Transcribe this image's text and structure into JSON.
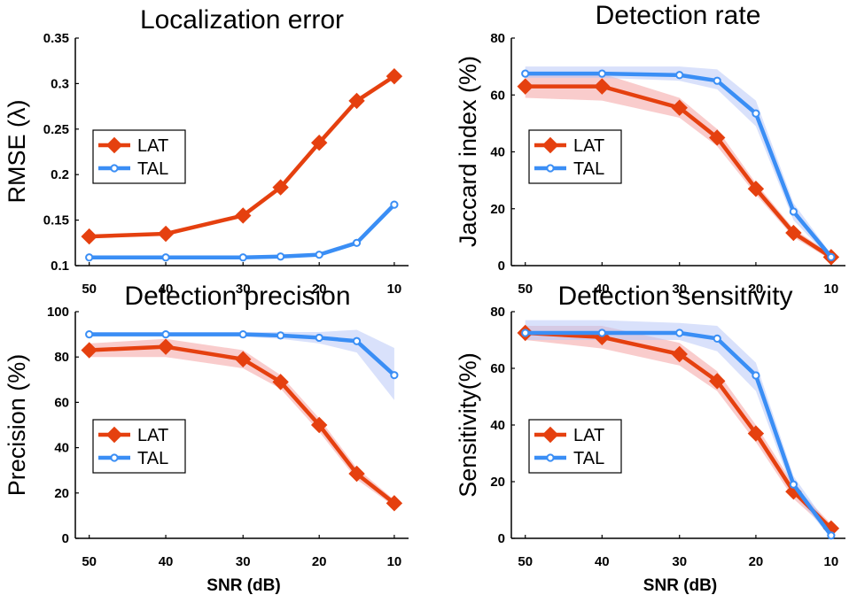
{
  "colors": {
    "LAT": "#e5400f",
    "TAL": "#3a8ef5",
    "LAT_band": "#f4a3a3",
    "TAL_band": "#b9c8f7"
  },
  "chart_data": [
    {
      "id": "localization-error",
      "type": "line",
      "title": "Localization error",
      "xlabel": "",
      "ylabel": "RMSE (λ)",
      "x_categories": [
        "50",
        "40",
        "30",
        "25",
        "20",
        "15",
        "10"
      ],
      "x_ticks": [
        "50",
        "40",
        "30",
        "20",
        "10"
      ],
      "x_reversed": true,
      "ylim": [
        0.1,
        0.35
      ],
      "y_ticks": [
        "0.1",
        "0.15",
        "0.2",
        "0.25",
        "0.3",
        "0.35"
      ],
      "series": [
        {
          "name": "LAT",
          "marker": "diamond",
          "values": [
            0.132,
            0.135,
            0.155,
            0.186,
            0.235,
            0.281,
            0.308
          ]
        },
        {
          "name": "TAL",
          "marker": "circle",
          "values": [
            0.109,
            0.109,
            0.109,
            0.11,
            0.112,
            0.125,
            0.167
          ]
        }
      ],
      "legend": [
        "LAT",
        "TAL"
      ],
      "legend_position": "middle-left"
    },
    {
      "id": "detection-rate",
      "type": "line",
      "title": "Detection rate",
      "xlabel": "",
      "ylabel": "Jaccard index (%)",
      "x_categories": [
        "50",
        "40",
        "30",
        "25",
        "20",
        "15",
        "10"
      ],
      "x_ticks": [
        "50",
        "40",
        "30",
        "20",
        "10"
      ],
      "x_reversed": true,
      "ylim": [
        0,
        80
      ],
      "y_ticks": [
        "0",
        "20",
        "40",
        "60",
        "80"
      ],
      "series": [
        {
          "name": "LAT",
          "marker": "diamond",
          "values": [
            63,
            63,
            55.5,
            45,
            27,
            11.5,
            3
          ],
          "band": [
            [
              59,
              67
            ],
            [
              58,
              67.5
            ],
            [
              52,
              59
            ],
            [
              42,
              48
            ],
            [
              25,
              29
            ],
            [
              10,
              13
            ],
            [
              2,
              4
            ]
          ]
        },
        {
          "name": "TAL",
          "marker": "circle",
          "values": [
            67.5,
            67.5,
            67,
            65,
            53.5,
            19,
            3
          ],
          "band": [
            [
              66,
              70
            ],
            [
              66,
              70
            ],
            [
              65,
              70
            ],
            [
              62,
              69
            ],
            [
              49,
              58
            ],
            [
              16,
              22
            ],
            [
              2,
              4
            ]
          ]
        }
      ],
      "legend": [
        "LAT",
        "TAL"
      ],
      "legend_position": "middle-left"
    },
    {
      "id": "detection-precision",
      "type": "line",
      "title": "Detection precision",
      "xlabel": "SNR (dB)",
      "ylabel": "Precision (%)",
      "x_categories": [
        "50",
        "40",
        "30",
        "25",
        "20",
        "15",
        "10"
      ],
      "x_ticks": [
        "50",
        "40",
        "30",
        "20",
        "10"
      ],
      "x_reversed": true,
      "ylim": [
        0,
        100
      ],
      "y_ticks": [
        "0",
        "20",
        "40",
        "60",
        "80",
        "100"
      ],
      "series": [
        {
          "name": "LAT",
          "marker": "diamond",
          "values": [
            83,
            84.5,
            79,
            69,
            50,
            28.5,
            15.5
          ],
          "band": [
            [
              80,
              86
            ],
            [
              80,
              88
            ],
            [
              75,
              83
            ],
            [
              66,
              72
            ],
            [
              47,
              53
            ],
            [
              26,
              31
            ],
            [
              14,
              17
            ]
          ]
        },
        {
          "name": "TAL",
          "marker": "circle",
          "values": [
            90,
            90,
            90,
            89.5,
            88.5,
            87,
            72
          ],
          "band": [
            [
              89,
              91
            ],
            [
              89,
              91
            ],
            [
              89,
              91
            ],
            [
              88,
              91
            ],
            [
              86,
              91
            ],
            [
              82,
              92
            ],
            [
              61,
              84
            ]
          ]
        }
      ],
      "legend": [
        "LAT",
        "TAL"
      ],
      "legend_position": "middle-left"
    },
    {
      "id": "detection-sensitivity",
      "type": "line",
      "title": "Detection sensitivity",
      "xlabel": "SNR (dB)",
      "ylabel": "Sensitivity(%)",
      "x_categories": [
        "50",
        "40",
        "30",
        "25",
        "20",
        "15",
        "10"
      ],
      "x_ticks": [
        "50",
        "40",
        "30",
        "20",
        "10"
      ],
      "x_reversed": true,
      "ylim": [
        0,
        80
      ],
      "y_ticks": [
        "0",
        "20",
        "40",
        "60",
        "80"
      ],
      "series": [
        {
          "name": "LAT",
          "marker": "diamond",
          "values": [
            72.5,
            71,
            65,
            55.5,
            37,
            16.5,
            3.5
          ],
          "band": [
            [
              70,
              75
            ],
            [
              67,
              75
            ],
            [
              61,
              69
            ],
            [
              52,
              59
            ],
            [
              34,
              40
            ],
            [
              14,
              19
            ],
            [
              2,
              5
            ]
          ]
        },
        {
          "name": "TAL",
          "marker": "circle",
          "values": [
            72.5,
            72.5,
            72.5,
            70.5,
            57.5,
            19,
            1
          ],
          "band": [
            [
              70,
              77
            ],
            [
              70,
              77
            ],
            [
              70,
              76
            ],
            [
              66,
              75
            ],
            [
              52,
              62
            ],
            [
              16,
              22
            ],
            [
              0,
              3
            ]
          ]
        }
      ],
      "legend": [
        "LAT",
        "TAL"
      ],
      "legend_position": "middle-left"
    }
  ]
}
